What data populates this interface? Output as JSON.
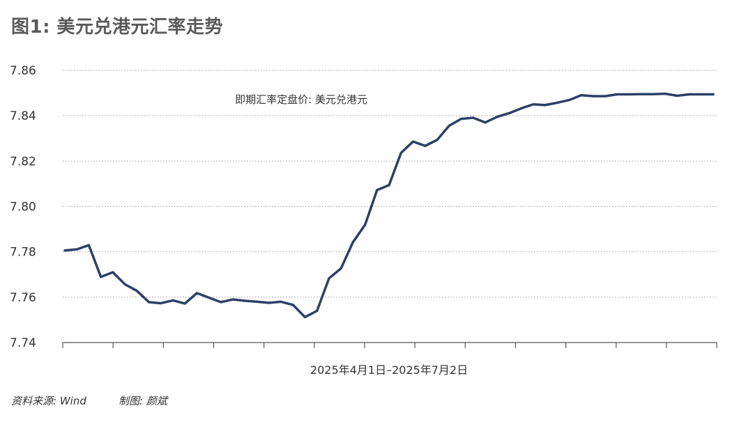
{
  "figure": {
    "title": "图1: 美元兑港元汇率走势",
    "source": "资料来源: Wind",
    "author": "制图: 颜斌"
  },
  "chart_data": {
    "type": "line",
    "title": "",
    "xlabel": "2025年4月1日–2025年7月2日",
    "ylabel": "",
    "ylim": [
      7.74,
      7.86
    ],
    "yticks": [
      "7.74",
      "7.76",
      "7.78",
      "7.80",
      "7.82",
      "7.84",
      "7.86"
    ],
    "grid": "horizontal dotted",
    "legend_placement": "top-center",
    "series": [
      {
        "name": "即期汇率定盘价: 美元兑港元",
        "color": "#2b4166",
        "values": [
          7.7806,
          7.7811,
          7.7829,
          7.7689,
          7.771,
          7.7657,
          7.7628,
          7.7578,
          7.7573,
          7.7586,
          7.7572,
          7.7618,
          7.7598,
          7.7578,
          7.759,
          7.7584,
          7.758,
          7.7575,
          7.758,
          7.7566,
          7.7512,
          7.754,
          7.7683,
          7.7727,
          7.7843,
          7.7919,
          7.8072,
          7.8094,
          7.8236,
          7.8286,
          7.8267,
          7.8293,
          7.8355,
          7.8386,
          7.8391,
          7.837,
          7.8395,
          7.8411,
          7.8432,
          7.845,
          7.8447,
          7.8457,
          7.8469,
          7.849,
          7.8486,
          7.8486,
          7.8494,
          7.8494,
          7.8495,
          7.8495,
          7.8497,
          7.8488,
          7.8494,
          7.8494,
          7.8494
        ]
      }
    ]
  }
}
